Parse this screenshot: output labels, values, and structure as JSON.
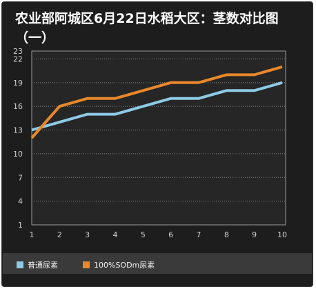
{
  "chart_data": {
    "type": "line",
    "title": "农业部阿城区6月22日水稻大区：茎数对比图（一）",
    "x": [
      1,
      2,
      3,
      4,
      5,
      6,
      7,
      8,
      9,
      10
    ],
    "y_ticks": [
      1,
      4,
      7,
      10,
      13,
      16,
      19,
      22,
      23
    ],
    "ylim": [
      1,
      23
    ],
    "grid": true,
    "legend_position": "bottom",
    "series": [
      {
        "name": "普通尿素",
        "color": "#8ecae6",
        "values": [
          13,
          14,
          15,
          15,
          16,
          17,
          17,
          18,
          18,
          19
        ]
      },
      {
        "name": "100%SODm尿素",
        "color": "#e8882b",
        "values": [
          12,
          16,
          17,
          17,
          18,
          19,
          19,
          20,
          20,
          21
        ]
      }
    ]
  }
}
